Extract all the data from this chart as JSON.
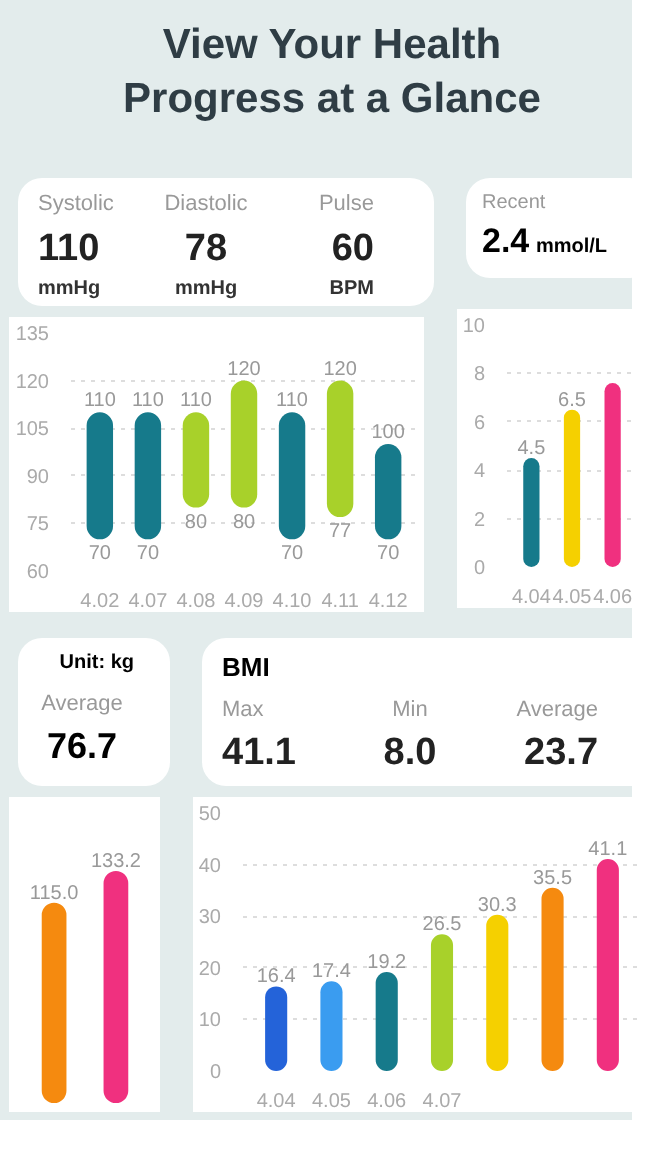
{
  "chart_data": [
    {
      "type": "other",
      "title": "View Your Health Progress at a Glance"
    },
    {
      "type": "bar",
      "categories": [
        "4.02",
        "4.07",
        "4.08",
        "4.09",
        "4.10",
        "4.11",
        "4.12"
      ],
      "base": [
        70,
        70,
        80,
        80,
        70,
        77,
        70
      ],
      "values": [
        40,
        40,
        30,
        40,
        40,
        43,
        30
      ],
      "colors": [
        "#167a8b",
        "#167a8b",
        "#a8d12a",
        "#a8d12a",
        "#167a8b",
        "#a8d12a",
        "#167a8b"
      ],
      "ylim": [
        60,
        135
      ],
      "yticks": [
        60,
        75,
        90,
        105,
        120,
        135
      ],
      "grid": "y",
      "annotations": [
        "Systolic",
        "110",
        "mmHg",
        "Diastolic",
        "78",
        "mmHg",
        "Pulse",
        "60",
        "BPM",
        {
          "text": "110",
          "x": "4.02",
          "y": 110
        },
        {
          "text": "70",
          "x": "4.02",
          "y": 70
        },
        {
          "text": "110",
          "x": "4.07",
          "y": 110
        },
        {
          "text": "70",
          "x": "4.07",
          "y": 70
        },
        {
          "text": "110",
          "x": "4.08",
          "y": 110
        },
        {
          "text": "80",
          "x": "4.08",
          "y": 80
        },
        {
          "text": "120",
          "x": "4.09",
          "y": 120
        },
        {
          "text": "80",
          "x": "4.09",
          "y": 80
        },
        {
          "text": "110",
          "x": "4.10",
          "y": 110
        },
        {
          "text": "70",
          "x": "4.10",
          "y": 70
        },
        {
          "text": "120",
          "x": "4.11",
          "y": 120
        },
        {
          "text": "77",
          "x": "4.11",
          "y": 77
        },
        {
          "text": "100",
          "x": "4.12",
          "y": 100
        },
        {
          "text": "70",
          "x": "4.12",
          "y": 70
        }
      ]
    },
    {
      "type": "bar",
      "categories": [
        "4.04",
        "4.05",
        "4.06"
      ],
      "values": [
        4.5,
        6.5,
        7.6
      ],
      "value_labels": [
        "4.5",
        "6.5",
        null
      ],
      "colors": [
        "#167a8b",
        "#f5d000",
        "#f0307f"
      ],
      "ylim": [
        0,
        10
      ],
      "yticks": [
        0,
        2,
        4,
        6,
        8,
        10
      ],
      "grid": "y",
      "annotations": [
        "Recent",
        "2.4",
        "mmol/L"
      ]
    },
    {
      "type": "bar",
      "categories": [
        null,
        null
      ],
      "values": [
        115.0,
        133.2
      ],
      "value_labels": [
        "115.0",
        "133.2"
      ],
      "colors": [
        "#f58a0f",
        "#f0307f"
      ],
      "tick_labels": false,
      "annotations": [
        "Unit: kg",
        "Average",
        "76.7"
      ]
    },
    {
      "type": "bar",
      "title": "BMI",
      "categories": [
        "4.04",
        "4.05",
        "4.06",
        "4.07",
        null,
        null,
        null
      ],
      "values": [
        16.4,
        17.4,
        19.2,
        26.5,
        30.3,
        35.5,
        41.1
      ],
      "colors": [
        "#2463d9",
        "#3a9cf0",
        "#167a8b",
        "#a8d12a",
        "#f5d000",
        "#f58a0f",
        "#f0307f"
      ],
      "data_labels": true,
      "ylim": [
        0,
        50
      ],
      "yticks": [
        0,
        10,
        20,
        30,
        40,
        50
      ],
      "grid": "y",
      "annotations": [
        "Max",
        "41.1",
        "Min",
        "8.0",
        "Average",
        "23.7"
      ]
    }
  ]
}
